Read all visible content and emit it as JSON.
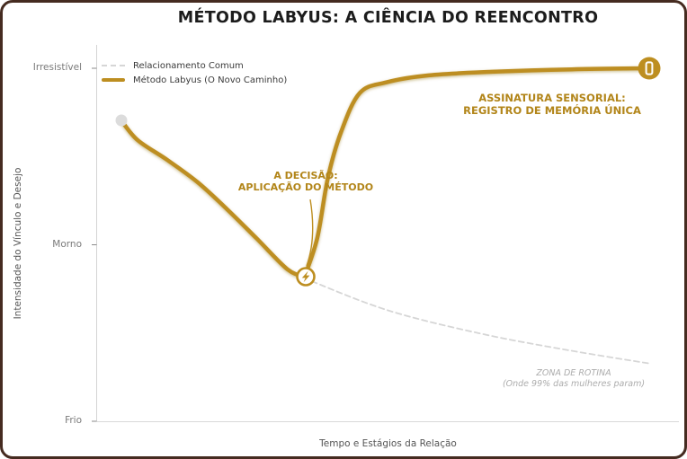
{
  "title": "MÉTODO LABYUS: A CIÊNCIA DO REENCONTRO",
  "axes": {
    "x_label": "Tempo e Estágios da Relação",
    "y_label": "Intensidade do Vínculo e Desejo",
    "y_ticks": [
      "Irresistível",
      "Morno",
      "Frio"
    ]
  },
  "legend": {
    "items": [
      {
        "label": "Relacionamento Comum",
        "style": "dashed",
        "color": "#D6D6D6"
      },
      {
        "label": "Método Labyus (O Novo Caminho)",
        "style": "solid",
        "color": "#BD8E20"
      }
    ]
  },
  "annotations": {
    "decision": {
      "line1": "A DECISÃO:",
      "line2": "APLICAÇÃO DO MÉTODO"
    },
    "signature": {
      "line1": "ASSINATURA SENSORIAL:",
      "line2": "REGISTRO DE MEMÓRIA ÚNICA"
    },
    "routine": {
      "line1": "ZONA DE ROTINA",
      "line2": "(Onde 99% das mulheres param)"
    }
  },
  "colors": {
    "gold_line": "#BD8E20",
    "gold_text": "#B28519",
    "dashed_line": "#D6D6D6",
    "frame_border": "#452B20",
    "spine": "#D4D4D4",
    "title_text": "#1C1C1C"
  },
  "chart_data": {
    "type": "line",
    "title": "MÉTODO LABYUS: A CIÊNCIA DO REENCONTRO",
    "xlabel": "Tempo e Estágios da Relação",
    "ylabel": "Intensidade do Vínculo e Desejo",
    "xlim": [
      0,
      10
    ],
    "ylim": [
      0,
      10
    ],
    "grid": false,
    "legend_position": "upper left",
    "ytick_values": [
      10,
      5,
      0
    ],
    "ytick_labels": [
      "Irresistível",
      "Morno",
      "Frio"
    ],
    "series": [
      {
        "name": "Relacionamento Comum",
        "style": "dashed",
        "color": "#D6D6D6",
        "width": 1.8,
        "split_at_min": false,
        "x": [
          0,
          0.31,
          0.87,
          1.44,
          2.0,
          2.56,
          3.14,
          3.46,
          3.67,
          5.06,
          6.76,
          8.45,
          10.0
        ],
        "y": [
          8.52,
          7.96,
          7.4,
          6.77,
          6.0,
          5.17,
          4.3,
          4.1,
          3.92,
          3.13,
          2.49,
          2.01,
          1.63
        ]
      },
      {
        "name": "Método Labyus (O Novo Caminho)",
        "style": "solid",
        "color": "#BD8E20",
        "width": 4.5,
        "split_at_min": true,
        "x": [
          0,
          0.31,
          0.87,
          1.44,
          2.0,
          2.56,
          3.14,
          3.46,
          3.7,
          3.9,
          4.15,
          4.5,
          5.0,
          5.8,
          7.0,
          8.5,
          9.97
        ],
        "y": [
          8.52,
          7.96,
          7.4,
          6.77,
          6.0,
          5.17,
          4.3,
          4.1,
          5.2,
          6.9,
          8.2,
          9.3,
          9.6,
          9.8,
          9.9,
          9.97,
          10.0
        ]
      }
    ],
    "annotations": [
      {
        "text": "A DECISÃO: APLICAÇÃO DO MÉTODO",
        "target_xy": [
          3.46,
          4.1
        ],
        "text_xy": [
          3.48,
          6.95
        ]
      },
      {
        "text": "ASSINATURA SENSORIAL: REGISTRO DE MEMÓRIA ÚNICA",
        "text_xy": [
          8.1,
          9.1
        ]
      },
      {
        "text": "ZONA DE ROTINA (Onde 99% das mulheres param)",
        "text_xy": [
          8.5,
          1.3
        ]
      }
    ],
    "markers": [
      {
        "name": "start-point",
        "x": 0,
        "y": 8.52,
        "shape": "gray-dot"
      },
      {
        "name": "decision-point",
        "x": 3.46,
        "y": 4.1,
        "shape": "lightning-in-circle"
      },
      {
        "name": "end-point",
        "x": 9.97,
        "y": 10.0,
        "shape": "box-glyph-in-circle"
      }
    ]
  }
}
